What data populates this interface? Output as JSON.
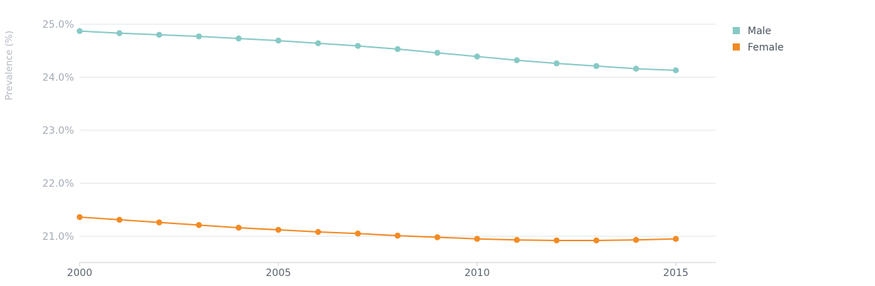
{
  "chart_data": {
    "type": "line",
    "title": "",
    "xlabel": "",
    "ylabel": "Prevalence (%)",
    "x": [
      2000,
      2001,
      2002,
      2003,
      2004,
      2005,
      2006,
      2007,
      2008,
      2009,
      2010,
      2011,
      2012,
      2013,
      2014,
      2015
    ],
    "x_ticks": [
      "2000",
      "2005",
      "2010",
      "2015"
    ],
    "y_ticks": [
      "25.0%",
      "24.0%",
      "23.0%",
      "22.0%",
      "21.0%"
    ],
    "ylim": [
      20.55,
      25.0
    ],
    "xlim": [
      2000,
      2016
    ],
    "grid": true,
    "legend_position": "top-right",
    "series": [
      {
        "name": "Male",
        "color": "#87c9c5",
        "values": [
          24.87,
          24.83,
          24.8,
          24.77,
          24.73,
          24.69,
          24.64,
          24.59,
          24.53,
          24.46,
          24.39,
          24.32,
          24.26,
          24.21,
          24.16,
          24.13
        ]
      },
      {
        "name": "Female",
        "color": "#f28b24",
        "values": [
          21.36,
          21.31,
          21.26,
          21.21,
          21.16,
          21.12,
          21.08,
          21.05,
          21.01,
          20.98,
          20.95,
          20.93,
          20.92,
          20.92,
          20.93,
          20.95
        ]
      }
    ]
  }
}
